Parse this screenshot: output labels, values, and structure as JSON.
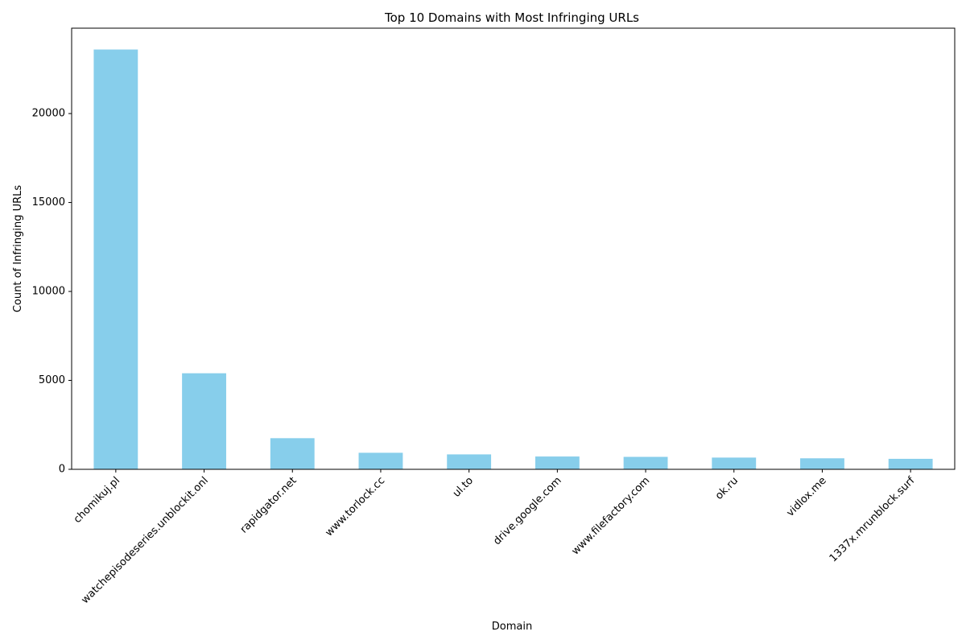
{
  "chart_data": {
    "type": "bar",
    "title": "Top 10 Domains with Most Infringing URLs",
    "xlabel": "Domain",
    "ylabel": "Count of Infringing URLs",
    "categories": [
      "chomikuj.pl",
      "watchepisodeseries.unblockit.onl",
      "rapidgator.net",
      "www.torlock.cc",
      "ul.to",
      "drive.google.com",
      "www.filefactory.com",
      "ok.ru",
      "vidlox.me",
      "1337x.mrunblock.surf"
    ],
    "values": [
      23600,
      5400,
      1750,
      930,
      840,
      720,
      700,
      660,
      620,
      590
    ],
    "ylim": [
      0,
      24800
    ],
    "yticks": [
      0,
      5000,
      10000,
      15000,
      20000
    ],
    "bar_color": "#87ceeb",
    "grid": false,
    "legend": false
  }
}
